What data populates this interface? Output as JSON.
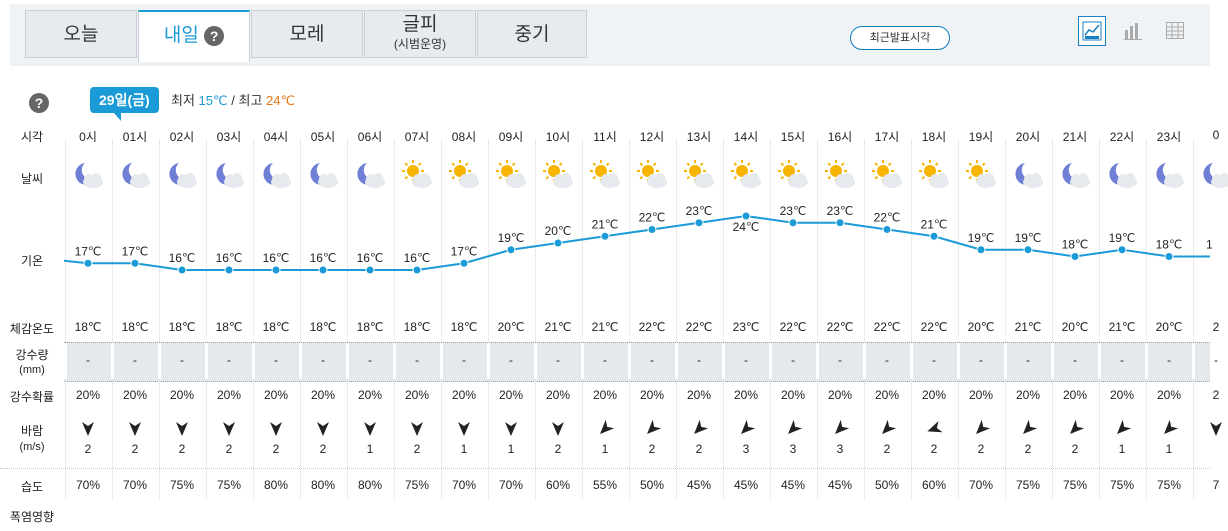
{
  "tabs": [
    {
      "label": "오늘",
      "sub": ""
    },
    {
      "label": "내일",
      "sub": ""
    },
    {
      "label": "모레",
      "sub": ""
    },
    {
      "label": "글피",
      "sub": "(시범운영)"
    },
    {
      "label": "중기",
      "sub": ""
    }
  ],
  "help_icon": "question-icon",
  "recent_button": "최근발표시각",
  "view_buttons": [
    "line-chart-icon",
    "bar-chart-icon",
    "table-icon"
  ],
  "day": {
    "badge": "29일(금)",
    "min_label": "최저",
    "min_value": "15℃",
    "separator": "/",
    "max_label": "최고",
    "max_value": "24℃"
  },
  "labels": {
    "time": "시각",
    "weather": "날씨",
    "temp": "기온",
    "feels": "체감온도",
    "precip": "강수량",
    "precip_unit": "(mm)",
    "prob": "강수확률",
    "wind": "바람",
    "wind_unit": "(m/s)",
    "humidity": "습도",
    "heat": "폭염영향"
  },
  "hours": [
    "0시",
    "01시",
    "02시",
    "03시",
    "04시",
    "05시",
    "06시",
    "07시",
    "08시",
    "09시",
    "10시",
    "11시",
    "12시",
    "13시",
    "14시",
    "15시",
    "16시",
    "17시",
    "18시",
    "19시",
    "20시",
    "21시",
    "22시",
    "23시",
    "0"
  ],
  "weather_icons": [
    "moon-cloud",
    "moon-cloud",
    "moon-cloud",
    "moon-cloud",
    "moon-cloud",
    "moon-cloud",
    "moon-cloud",
    "sun-cloud",
    "sun-cloud",
    "sun-cloud",
    "sun-cloud",
    "sun-cloud",
    "sun-cloud",
    "sun-cloud",
    "sun-cloud",
    "sun-cloud",
    "sun-cloud",
    "sun-cloud",
    "sun-cloud",
    "sun-cloud",
    "moon-cloud",
    "moon-cloud",
    "moon-cloud",
    "moon-cloud",
    "moon-cloud"
  ],
  "chart_data": {
    "type": "line",
    "x": [
      "0시",
      "01시",
      "02시",
      "03시",
      "04시",
      "05시",
      "06시",
      "07시",
      "08시",
      "09시",
      "10시",
      "11시",
      "12시",
      "13시",
      "14시",
      "15시",
      "16시",
      "17시",
      "18시",
      "19시",
      "20시",
      "21시",
      "22시",
      "23시"
    ],
    "values": [
      17,
      17,
      16,
      16,
      16,
      16,
      16,
      16,
      17,
      19,
      20,
      21,
      22,
      23,
      24,
      23,
      23,
      22,
      21,
      19,
      19,
      18,
      19,
      18
    ],
    "labels": [
      "17℃",
      "17℃",
      "16℃",
      "16℃",
      "16℃",
      "16℃",
      "16℃",
      "16℃",
      "17℃",
      "19℃",
      "20℃",
      "21℃",
      "22℃",
      "23℃",
      "24℃",
      "23℃",
      "23℃",
      "22℃",
      "21℃",
      "19℃",
      "19℃",
      "18℃",
      "19℃",
      "18℃"
    ],
    "edge_label": "1",
    "color": "#1a9ad6"
  },
  "feels_like": [
    "18℃",
    "18℃",
    "18℃",
    "18℃",
    "18℃",
    "18℃",
    "18℃",
    "18℃",
    "18℃",
    "20℃",
    "21℃",
    "21℃",
    "22℃",
    "22℃",
    "23℃",
    "22℃",
    "22℃",
    "22℃",
    "22℃",
    "20℃",
    "21℃",
    "20℃",
    "21℃",
    "20℃",
    "2"
  ],
  "precip": [
    "-",
    "-",
    "-",
    "-",
    "-",
    "-",
    "-",
    "-",
    "-",
    "-",
    "-",
    "-",
    "-",
    "-",
    "-",
    "-",
    "-",
    "-",
    "-",
    "-",
    "-",
    "-",
    "-",
    "-",
    "-"
  ],
  "prob": [
    "20%",
    "20%",
    "20%",
    "20%",
    "20%",
    "20%",
    "20%",
    "20%",
    "20%",
    "20%",
    "20%",
    "20%",
    "20%",
    "20%",
    "20%",
    "20%",
    "20%",
    "20%",
    "20%",
    "20%",
    "20%",
    "20%",
    "20%",
    "20%",
    "2"
  ],
  "wind_speed": [
    "2",
    "2",
    "2",
    "2",
    "2",
    "2",
    "1",
    "2",
    "1",
    "1",
    "2",
    "1",
    "2",
    "2",
    "3",
    "3",
    "3",
    "2",
    "2",
    "2",
    "2",
    "2",
    "1",
    "1",
    ""
  ],
  "wind_dir_deg": [
    180,
    180,
    180,
    180,
    180,
    180,
    180,
    180,
    180,
    180,
    180,
    225,
    225,
    225,
    225,
    225,
    225,
    225,
    250,
    225,
    225,
    225,
    225,
    225,
    180
  ],
  "humidity": [
    "70%",
    "70%",
    "75%",
    "75%",
    "80%",
    "80%",
    "80%",
    "75%",
    "70%",
    "70%",
    "60%",
    "55%",
    "50%",
    "45%",
    "45%",
    "45%",
    "45%",
    "50%",
    "60%",
    "70%",
    "75%",
    "75%",
    "75%",
    "75%",
    "7"
  ]
}
